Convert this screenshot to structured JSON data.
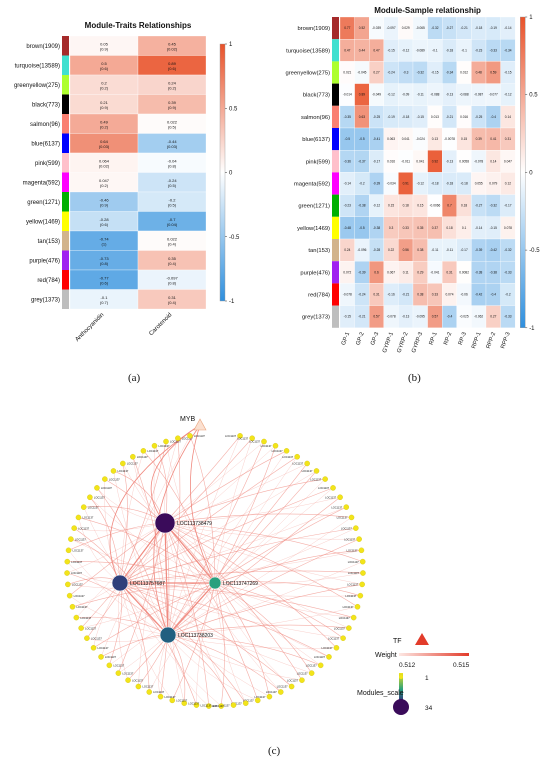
{
  "captions": {
    "a": "(a)",
    "b": "(b)",
    "c": "(c)"
  },
  "colors": {
    "neg": "#2f8fdd",
    "mid": "#ffffff",
    "pos": "#e8522a",
    "edge": "#f08a80",
    "tf": "#e23b2a"
  },
  "chart_data": [
    {
      "type": "heatmap",
      "title": "Module-Traits Relationships",
      "modules": [
        "brown(1909)",
        "turquoise(13589)",
        "greenyellow(275)",
        "black(773)",
        "salmon(96)",
        "blue(6137)",
        "pink(599)",
        "magenta(592)",
        "green(1271)",
        "yellow(1469)",
        "tan(153)",
        "purple(476)",
        "red(784)",
        "grey(1373)"
      ],
      "module_colors": [
        "#a52a2a",
        "#40e0d0",
        "#adff2f",
        "#000000",
        "#fa8072",
        "#0000ff",
        "#ffc0cb",
        "#ff00ff",
        "#00b000",
        "#ffff00",
        "#d2b48c",
        "#a020f0",
        "#ff0000",
        "#bebebe"
      ],
      "traits": [
        "Anthocyanidin",
        "Carotenoid"
      ],
      "values": [
        [
          0.05,
          0.45
        ],
        [
          0.5,
          0.89
        ],
        [
          0.2,
          0.24
        ],
        [
          0.21,
          0.39
        ],
        [
          0.49,
          0.022
        ],
        [
          0.64,
          -0.44
        ],
        [
          0.064,
          -0.04
        ],
        [
          0.047,
          -0.24
        ],
        [
          -0.46,
          -0.2
        ],
        [
          -0.28,
          -0.7
        ],
        [
          -0.74,
          0.022
        ],
        [
          -0.73,
          0.35
        ],
        [
          -0.77,
          -0.097
        ],
        [
          -0.1,
          0.31
        ]
      ],
      "pvalues": [
        "(0.9)",
        "(0.02)",
        "(0.6)",
        "(0.6)",
        "(0.2)",
        "(0.2)",
        "(0.9)",
        "(0.9)",
        "(0.2)",
        "(0.5)",
        "(0.03)",
        "(0.03)",
        "(0.02)",
        "(0.8)",
        "(0.2)",
        "(0.5)",
        "(0.9)",
        "(0.5)",
        "(0.6)",
        "(0.04)",
        "(1)",
        "(0.4)",
        "(0.8)",
        "(0.4)",
        "(0.6)",
        "(0.8)",
        "(0.7)",
        "(0.4)"
      ],
      "scale": {
        "min": -1,
        "max": 1,
        "ticks": [
          "1",
          "0.5",
          "0",
          "-0.5",
          "-1"
        ]
      }
    },
    {
      "type": "heatmap",
      "title": "Module-Sample relationship",
      "modules": [
        "brown(1909)",
        "turquoise(13589)",
        "greenyellow(275)",
        "black(773)",
        "salmon(96)",
        "blue(6137)",
        "pink(599)",
        "magenta(592)",
        "green(1271)",
        "yellow(1469)",
        "tan(153)",
        "purple(476)",
        "red(784)",
        "grey(1373)"
      ],
      "samples": [
        "GP-1",
        "GP-2",
        "GP-3",
        "GYRP-1",
        "GYRP-2",
        "GYRP-3",
        "RP-1",
        "RP-2",
        "RP-3",
        "RPP-1",
        "RPP-2",
        "RPP-3"
      ],
      "values": [
        [
          0.77,
          0.52,
          -0.039,
          -0.097,
          0.029,
          -0.065,
          -0.32,
          -0.27,
          -0.21,
          -0.18,
          -0.19,
          -0.14
        ],
        [
          0.47,
          0.44,
          0.47,
          -0.15,
          -0.12,
          -0.089,
          -0.1,
          -0.18,
          -0.1,
          -0.23,
          -0.33,
          -0.34
        ],
        [
          0.021,
          -0.045,
          0.27,
          -0.24,
          -0.3,
          -0.32,
          -0.15,
          -0.34,
          0.012,
          0.48,
          0.59,
          -0.15
        ],
        [
          -0.014,
          0.89,
          -0.049,
          -0.12,
          -0.09,
          -0.11,
          -0.088,
          -0.13,
          -0.088,
          -0.087,
          -0.077,
          -0.12
        ],
        [
          -0.35,
          0.63,
          -0.25,
          -0.19,
          -0.18,
          -0.15,
          0.013,
          -0.21,
          0.016,
          -0.25,
          -0.4,
          0.14
        ],
        [
          -0.5,
          -0.5,
          -0.41,
          0.063,
          0.041,
          -0.024,
          0.13,
          -0.0078,
          0.15,
          0.39,
          0.41,
          0.31
        ],
        [
          -0.36,
          -0.37,
          -0.17,
          0.016,
          -0.011,
          0.041,
          0.92,
          -0.13,
          0.0058,
          -0.078,
          0.14,
          0.047
        ],
        [
          -0.14,
          -0.2,
          -0.39,
          -0.034,
          0.91,
          -0.12,
          -0.18,
          -0.18,
          -0.18,
          0.055,
          0.079,
          0.12
        ],
        [
          -0.23,
          -0.38,
          -0.12,
          0.15,
          0.18,
          0.15,
          -0.0066,
          0.7,
          0.18,
          -0.27,
          -0.32,
          -0.17
        ],
        [
          -0.48,
          -0.5,
          -0.38,
          0.3,
          0.33,
          0.35,
          0.37,
          0.18,
          0.1,
          -0.14,
          -0.15,
          0.078
        ],
        [
          0.24,
          -0.096,
          -0.28,
          0.22,
          0.56,
          0.38,
          -0.11,
          -0.11,
          -0.17,
          -0.39,
          -0.42,
          -0.32
        ],
        [
          0.072,
          -0.39,
          0.6,
          0.067,
          0.11,
          0.29,
          -0.041,
          0.31,
          0.0082,
          -0.38,
          -0.38,
          -0.33
        ],
        [
          -0.078,
          -0.24,
          0.31,
          -0.16,
          -0.21,
          0.38,
          0.33,
          0.074,
          -0.06,
          -0.42,
          -0.4,
          -0.2
        ],
        [
          -0.15,
          -0.21,
          0.57,
          -0.078,
          -0.13,
          -0.095,
          0.57,
          -0.4,
          -0.025,
          -0.062,
          0.27,
          -0.33
        ]
      ],
      "scale": {
        "min": -1,
        "max": 1,
        "ticks": [
          "1",
          "0.5",
          "0",
          "-0.5",
          "-1"
        ]
      }
    },
    {
      "type": "network",
      "top_node": "MYB",
      "hub_nodes": [
        "LOC113738479",
        "LOC113757687",
        "LOC113738203",
        "LOC113747269"
      ],
      "hub_colors": [
        "#3a0b5a",
        "#2f3f7a",
        "#215f80",
        "#2aa07e"
      ],
      "hub_scale": [
        34,
        28,
        24,
        14
      ],
      "leaf_prefix": "LOC1137",
      "leaf_count": 72,
      "legend": {
        "tf_label": "TF",
        "weight_label": "Weight",
        "weight_min": "0.512",
        "weight_max": "0.515",
        "modules_label": "Modules_scale",
        "scale_min": "1",
        "scale_max": "34"
      }
    }
  ]
}
